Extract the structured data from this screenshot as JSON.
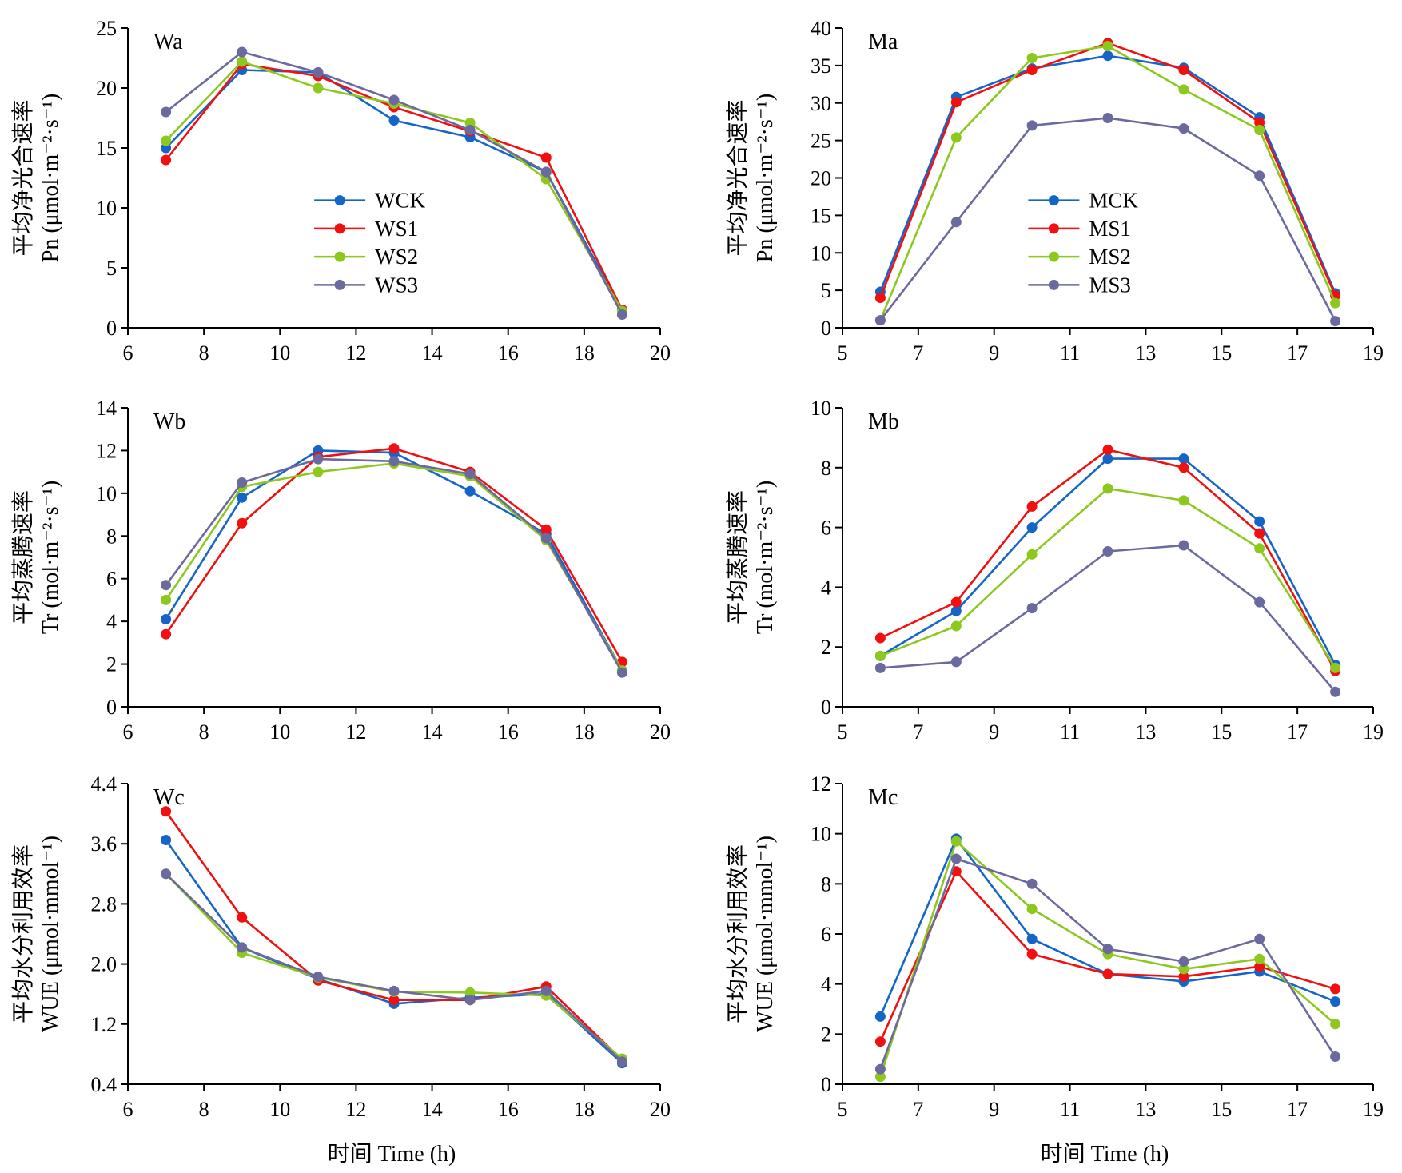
{
  "x_title": "时间 Time (h)",
  "colors": {
    "blue": "#1565C8",
    "red": "#F01010",
    "green": "#8CC81E",
    "purple": "#6A6A9E"
  },
  "chart_data": [
    {
      "type": "line",
      "panel": "Wa",
      "ylabel_cn": "平均净光合速率",
      "ylabel_unit": "Pn (μmol·m⁻²·s⁻¹)",
      "xlim": [
        6,
        20
      ],
      "xticks": [
        6,
        8,
        10,
        12,
        14,
        16,
        18,
        20
      ],
      "ylim": [
        0,
        25
      ],
      "yticks": [
        0,
        5,
        10,
        15,
        20,
        25
      ],
      "tick_labels": [
        "0",
        "5",
        "10",
        "15",
        "20",
        "25"
      ],
      "legend_position": "center",
      "x": [
        7,
        9,
        11,
        13,
        15,
        17,
        19
      ],
      "series": [
        {
          "name": "WCK",
          "color": "#1565C8",
          "values": [
            15.0,
            21.5,
            21.3,
            17.3,
            15.9,
            13.0,
            1.5
          ]
        },
        {
          "name": "WS1",
          "color": "#F01010",
          "values": [
            14.0,
            22.0,
            21.0,
            18.4,
            16.4,
            14.2,
            1.5
          ]
        },
        {
          "name": "WS2",
          "color": "#8CC81E",
          "values": [
            15.6,
            22.2,
            20.0,
            18.7,
            17.1,
            12.4,
            1.4
          ]
        },
        {
          "name": "WS3",
          "color": "#6A6A9E",
          "values": [
            18.0,
            23.0,
            21.3,
            19.0,
            16.5,
            13.0,
            1.1
          ]
        }
      ]
    },
    {
      "type": "line",
      "panel": "Ma",
      "ylabel_cn": "平均净光合速率",
      "ylabel_unit": "Pn (μmol·m⁻²·s⁻¹)",
      "xlim": [
        5,
        19
      ],
      "xticks": [
        5,
        7,
        9,
        11,
        13,
        15,
        17,
        19
      ],
      "ylim": [
        0,
        40
      ],
      "yticks": [
        0,
        5,
        10,
        15,
        20,
        25,
        30,
        35,
        40
      ],
      "tick_labels": [
        "0",
        "5",
        "10",
        "15",
        "20",
        "25",
        "30",
        "35",
        "40"
      ],
      "legend_position": "center",
      "x": [
        6,
        8,
        10,
        12,
        14,
        16,
        18
      ],
      "series": [
        {
          "name": "MCK",
          "color": "#1565C8",
          "values": [
            4.8,
            30.8,
            34.6,
            36.3,
            34.7,
            28.1,
            4.6
          ]
        },
        {
          "name": "MS1",
          "color": "#F01010",
          "values": [
            4.0,
            30.1,
            34.4,
            38.0,
            34.4,
            27.4,
            4.3
          ]
        },
        {
          "name": "MS2",
          "color": "#8CC81E",
          "values": [
            1.0,
            25.4,
            36.0,
            37.6,
            31.8,
            26.4,
            3.3
          ]
        },
        {
          "name": "MS3",
          "color": "#6A6A9E",
          "values": [
            1.0,
            14.1,
            27.0,
            28.0,
            26.6,
            20.3,
            0.9
          ]
        }
      ]
    },
    {
      "type": "line",
      "panel": "Wb",
      "ylabel_cn": "平均蒸腾速率",
      "ylabel_unit": "Tr (mol·m⁻²·s⁻¹)",
      "xlim": [
        6,
        20
      ],
      "xticks": [
        6,
        8,
        10,
        12,
        14,
        16,
        18,
        20
      ],
      "ylim": [
        0,
        14
      ],
      "yticks": [
        0,
        2,
        4,
        6,
        8,
        10,
        12,
        14
      ],
      "tick_labels": [
        "0",
        "2",
        "4",
        "6",
        "8",
        "10",
        "12",
        "14"
      ],
      "x": [
        7,
        9,
        11,
        13,
        15,
        17,
        19
      ],
      "series": [
        {
          "name": "WCK",
          "color": "#1565C8",
          "values": [
            4.1,
            9.8,
            12.0,
            11.9,
            10.1,
            8.1,
            1.7
          ]
        },
        {
          "name": "WS1",
          "color": "#F01010",
          "values": [
            3.4,
            8.6,
            11.7,
            12.1,
            11.0,
            8.3,
            2.1
          ]
        },
        {
          "name": "WS2",
          "color": "#8CC81E",
          "values": [
            5.0,
            10.3,
            11.0,
            11.4,
            10.8,
            7.8,
            1.7
          ]
        },
        {
          "name": "WS3",
          "color": "#6A6A9E",
          "values": [
            5.7,
            10.5,
            11.6,
            11.5,
            10.9,
            7.9,
            1.6
          ]
        }
      ]
    },
    {
      "type": "line",
      "panel": "Mb",
      "ylabel_cn": "平均蒸腾速率",
      "ylabel_unit": "Tr (mol·m⁻²·s⁻¹)",
      "xlim": [
        5,
        19
      ],
      "xticks": [
        5,
        7,
        9,
        11,
        13,
        15,
        17,
        19
      ],
      "ylim": [
        0,
        10
      ],
      "yticks": [
        0,
        2,
        4,
        6,
        8,
        10
      ],
      "tick_labels": [
        "0",
        "2",
        "4",
        "6",
        "8",
        "10"
      ],
      "x": [
        6,
        8,
        10,
        12,
        14,
        16,
        18
      ],
      "series": [
        {
          "name": "MCK",
          "color": "#1565C8",
          "values": [
            1.7,
            3.2,
            6.0,
            8.3,
            8.3,
            6.2,
            1.4
          ]
        },
        {
          "name": "MS1",
          "color": "#F01010",
          "values": [
            2.3,
            3.5,
            6.7,
            8.6,
            8.0,
            5.8,
            1.2
          ]
        },
        {
          "name": "MS2",
          "color": "#8CC81E",
          "values": [
            1.7,
            2.7,
            5.1,
            7.3,
            6.9,
            5.3,
            1.3
          ]
        },
        {
          "name": "MS3",
          "color": "#6A6A9E",
          "values": [
            1.3,
            1.5,
            3.3,
            5.2,
            5.4,
            3.5,
            0.5
          ]
        }
      ]
    },
    {
      "type": "line",
      "panel": "Wc",
      "ylabel_cn": "平均水分利用效率",
      "ylabel_unit": "WUE (μmol·mmol⁻¹)",
      "xlim": [
        6,
        20
      ],
      "xticks": [
        6,
        8,
        10,
        12,
        14,
        16,
        18,
        20
      ],
      "ylim": [
        0.4,
        4.4
      ],
      "yticks": [
        0.4,
        1.2,
        2.0,
        2.8,
        3.6,
        4.4
      ],
      "tick_labels": [
        "0.4",
        "1.2",
        "2.0",
        "2.8",
        "3.6",
        "4.4"
      ],
      "x": [
        7,
        9,
        11,
        13,
        15,
        17,
        19
      ],
      "series": [
        {
          "name": "WCK",
          "color": "#1565C8",
          "values": [
            3.65,
            2.22,
            1.8,
            1.47,
            1.55,
            1.6,
            0.68
          ]
        },
        {
          "name": "WS1",
          "color": "#F01010",
          "values": [
            4.03,
            2.62,
            1.78,
            1.52,
            1.52,
            1.7,
            0.72
          ]
        },
        {
          "name": "WS2",
          "color": "#8CC81E",
          "values": [
            3.2,
            2.15,
            1.82,
            1.63,
            1.62,
            1.58,
            0.74
          ]
        },
        {
          "name": "WS3",
          "color": "#6A6A9E",
          "values": [
            3.2,
            2.22,
            1.83,
            1.64,
            1.52,
            1.64,
            0.7
          ]
        }
      ]
    },
    {
      "type": "line",
      "panel": "Mc",
      "ylabel_cn": "平均水分利用效率",
      "ylabel_unit": "WUE (μmol·mmol⁻¹)",
      "xlim": [
        5,
        19
      ],
      "xticks": [
        5,
        7,
        9,
        11,
        13,
        15,
        17,
        19
      ],
      "ylim": [
        0,
        12
      ],
      "yticks": [
        0,
        2,
        4,
        6,
        8,
        10,
        12
      ],
      "tick_labels": [
        "0",
        "2",
        "4",
        "6",
        "8",
        "10",
        "12"
      ],
      "x": [
        6,
        8,
        10,
        12,
        14,
        16,
        18
      ],
      "series": [
        {
          "name": "MCK",
          "color": "#1565C8",
          "values": [
            2.7,
            9.8,
            5.8,
            4.4,
            4.1,
            4.5,
            3.3
          ]
        },
        {
          "name": "MS1",
          "color": "#F01010",
          "values": [
            1.7,
            8.5,
            5.2,
            4.4,
            4.3,
            4.7,
            3.8
          ]
        },
        {
          "name": "MS2",
          "color": "#8CC81E",
          "values": [
            0.3,
            9.7,
            7.0,
            5.2,
            4.6,
            5.0,
            2.4
          ]
        },
        {
          "name": "MS3",
          "color": "#6A6A9E",
          "values": [
            0.6,
            9.0,
            8.0,
            5.4,
            4.9,
            5.8,
            1.1
          ]
        }
      ]
    }
  ]
}
